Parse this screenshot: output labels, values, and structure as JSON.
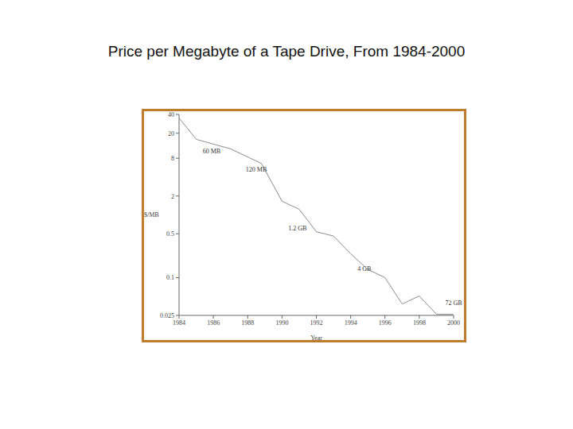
{
  "chart_data": {
    "type": "line",
    "title": "Price per Megabyte of a Tape Drive, From 1984-2000",
    "x_label": "Year",
    "y_label": "$/MB",
    "x": [
      1984,
      1985,
      1987,
      1988.8,
      1990,
      1991,
      1992,
      1993,
      1994,
      1995,
      1996,
      1997,
      1998,
      1999,
      2000
    ],
    "values": [
      35,
      16,
      11.3,
      6.6,
      1.65,
      1.23,
      0.54,
      0.46,
      0.24,
      0.135,
      0.1,
      0.038,
      0.051,
      0.026,
      0.026
    ],
    "color": "#8c8c8c",
    "line_style": "solid",
    "xlim": [
      1984,
      2000
    ],
    "xticks": [
      1984,
      1986,
      1988,
      1990,
      1992,
      1994,
      1996,
      1998,
      2000
    ],
    "ylim": [
      0.025,
      40
    ],
    "yticks": [
      0.025,
      0.1,
      0.5,
      2,
      8,
      20,
      40
    ],
    "log": "y",
    "grid": false,
    "annotations": [
      {
        "text": "60 MB",
        "x": 1985.9,
        "y": 10.3
      },
      {
        "text": "120 MB",
        "x": 1988.5,
        "y": 5.4
      },
      {
        "text": "1.2 GB",
        "x": 1990.9,
        "y": 0.62
      },
      {
        "text": "4 GB",
        "x": 1994.8,
        "y": 0.14
      },
      {
        "text": "72 GB",
        "x": 2000,
        "y": 0.04
      }
    ]
  }
}
